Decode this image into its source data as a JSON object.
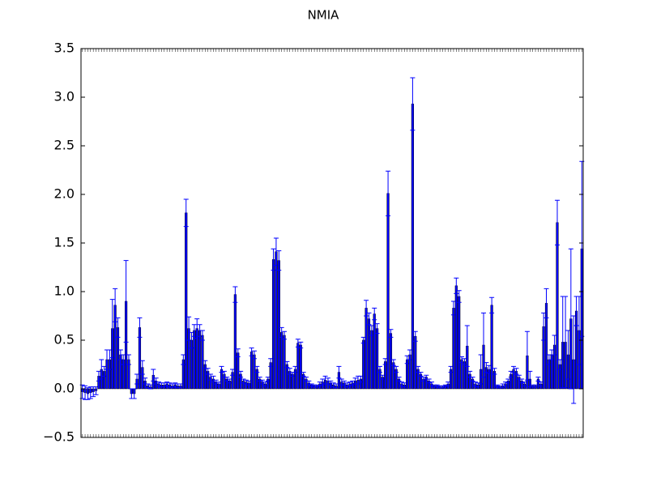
{
  "chart_data": {
    "type": "bar",
    "title": "NMIA",
    "categories": [
      null,
      null,
      null,
      null,
      null,
      null,
      null,
      null,
      null,
      null,
      null,
      null,
      null,
      null,
      null,
      null,
      null,
      null,
      null,
      null,
      null,
      null,
      null,
      null,
      null,
      null,
      null,
      null,
      null,
      null,
      null,
      null,
      null,
      null,
      null,
      null,
      null,
      null,
      null,
      null,
      null,
      null,
      null,
      null,
      null,
      null,
      null,
      null,
      null,
      null,
      null,
      null,
      null,
      null,
      null,
      null,
      null,
      null,
      null,
      null,
      null,
      null,
      null,
      null,
      null,
      null,
      null,
      null,
      null,
      null,
      null,
      null,
      null,
      null,
      null,
      null,
      null,
      null,
      null,
      null,
      null,
      null,
      null,
      null,
      null,
      null,
      null,
      null,
      null,
      null,
      null,
      null,
      null,
      null,
      null,
      null,
      null,
      null,
      null,
      null,
      null,
      null,
      null,
      null,
      null,
      null,
      null,
      null,
      null,
      null,
      null,
      null,
      null,
      null,
      null,
      null,
      null,
      null,
      null,
      null,
      null,
      null,
      null,
      null,
      null,
      null,
      null,
      null,
      null,
      null,
      null,
      null,
      null,
      null,
      null,
      null,
      null,
      null,
      null,
      null,
      null,
      null,
      null,
      null,
      null,
      null,
      null,
      null,
      null,
      null,
      null,
      null,
      null,
      null,
      null,
      null,
      null,
      null,
      null,
      null,
      null,
      null,
      null,
      null,
      null,
      null,
      null,
      null,
      null,
      null,
      null,
      null,
      null,
      null,
      null,
      null,
      null,
      null,
      null,
      null,
      null,
      null,
      null,
      null
    ],
    "series": [
      {
        "color": "#0000ff",
        "error_color": "#0000ff",
        "values": [
          -0.03,
          -0.04,
          -0.05,
          -0.04,
          -0.03,
          -0.02,
          0.13,
          0.2,
          0.18,
          0.3,
          0.3,
          0.62,
          0.86,
          0.63,
          0.35,
          0.3,
          0.9,
          0.3,
          -0.05,
          -0.05,
          0.1,
          0.63,
          0.22,
          0.08,
          0.03,
          0.02,
          0.14,
          0.08,
          0.05,
          0.04,
          0.04,
          0.05,
          0.04,
          0.03,
          0.04,
          0.03,
          0.03,
          0.3,
          1.81,
          0.62,
          0.5,
          0.6,
          0.62,
          0.6,
          0.55,
          0.25,
          0.18,
          0.12,
          0.1,
          0.07,
          0.05,
          0.2,
          0.15,
          0.1,
          0.08,
          0.17,
          0.97,
          0.37,
          0.15,
          0.08,
          0.07,
          0.06,
          0.38,
          0.35,
          0.2,
          0.1,
          0.07,
          0.05,
          0.1,
          0.27,
          1.33,
          1.41,
          1.32,
          0.58,
          0.55,
          0.25,
          0.18,
          0.15,
          0.2,
          0.47,
          0.45,
          0.15,
          0.1,
          0.06,
          0.04,
          0.03,
          0.03,
          0.05,
          0.07,
          0.09,
          0.08,
          0.06,
          0.04,
          0.03,
          0.17,
          0.07,
          0.06,
          0.04,
          0.05,
          0.06,
          0.08,
          0.09,
          0.1,
          0.5,
          0.83,
          0.72,
          0.6,
          0.77,
          0.62,
          0.2,
          0.12,
          0.28,
          2.01,
          0.57,
          0.27,
          0.2,
          0.1,
          0.05,
          0.04,
          0.3,
          0.35,
          2.93,
          0.54,
          0.2,
          0.15,
          0.1,
          0.12,
          0.08,
          0.05,
          0.03,
          0.03,
          0.02,
          0.02,
          0.03,
          0.05,
          0.2,
          0.83,
          1.06,
          0.95,
          0.3,
          0.28,
          0.44,
          0.15,
          0.1,
          0.05,
          0.04,
          0.2,
          0.45,
          0.22,
          0.2,
          0.86,
          0.18,
          0.03,
          0.02,
          0.03,
          0.05,
          0.08,
          0.15,
          0.2,
          0.18,
          0.12,
          0.08,
          0.05,
          0.34,
          0.1,
          0.03,
          0.03,
          0.1,
          0.05,
          0.64,
          0.88,
          0.3,
          0.35,
          0.45,
          1.71,
          0.25,
          0.48,
          0.48,
          0.35,
          0.72,
          0.3,
          0.8,
          0.6,
          1.44
        ],
        "errors": [
          0.07,
          0.07,
          0.06,
          0.06,
          0.05,
          0.04,
          0.05,
          0.1,
          0.05,
          0.1,
          0.1,
          0.3,
          0.17,
          0.1,
          0.05,
          0.05,
          0.42,
          0.05,
          0.05,
          0.05,
          0.05,
          0.1,
          0.07,
          0.03,
          0.02,
          0.02,
          0.06,
          0.03,
          0.02,
          0.02,
          0.02,
          0.02,
          0.02,
          0.02,
          0.02,
          0.02,
          0.02,
          0.05,
          0.14,
          0.12,
          0.08,
          0.06,
          0.1,
          0.06,
          0.05,
          0.04,
          0.03,
          0.03,
          0.03,
          0.02,
          0.02,
          0.03,
          0.03,
          0.02,
          0.02,
          0.03,
          0.08,
          0.04,
          0.03,
          0.02,
          0.02,
          0.02,
          0.04,
          0.04,
          0.03,
          0.02,
          0.02,
          0.02,
          0.02,
          0.04,
          0.11,
          0.14,
          0.1,
          0.05,
          0.04,
          0.03,
          0.03,
          0.02,
          0.03,
          0.04,
          0.03,
          0.02,
          0.02,
          0.02,
          0.01,
          0.01,
          0.01,
          0.02,
          0.03,
          0.04,
          0.03,
          0.02,
          0.02,
          0.02,
          0.06,
          0.03,
          0.02,
          0.02,
          0.02,
          0.02,
          0.03,
          0.04,
          0.03,
          0.03,
          0.08,
          0.06,
          0.05,
          0.06,
          0.05,
          0.03,
          0.02,
          0.03,
          0.23,
          0.04,
          0.03,
          0.03,
          0.02,
          0.02,
          0.02,
          0.04,
          0.05,
          0.27,
          0.05,
          0.03,
          0.02,
          0.02,
          0.02,
          0.02,
          0.02,
          0.01,
          0.01,
          0.01,
          0.01,
          0.01,
          0.02,
          0.03,
          0.07,
          0.08,
          0.06,
          0.03,
          0.03,
          0.21,
          0.03,
          0.02,
          0.02,
          0.02,
          0.15,
          0.33,
          0.05,
          0.04,
          0.08,
          0.03,
          0.01,
          0.01,
          0.02,
          0.02,
          0.02,
          0.03,
          0.03,
          0.03,
          0.02,
          0.02,
          0.02,
          0.25,
          0.08,
          0.01,
          0.01,
          0.02,
          0.02,
          0.14,
          0.15,
          0.05,
          0.05,
          0.1,
          0.23,
          0.05,
          0.47,
          0.47,
          0.25,
          0.72,
          0.45,
          0.15,
          0.35,
          0.9
        ]
      }
    ],
    "ylim": [
      -0.5,
      3.5
    ],
    "yticks": [
      {
        "value": -0.5,
        "label": "−0.5"
      },
      {
        "value": 0,
        "label": "0.0"
      },
      0.5,
      {
        "value": 1,
        "label": "1.0"
      },
      1.5,
      {
        "value": 2,
        "label": "2.0"
      },
      2.5,
      {
        "value": 3,
        "label": "3.0"
      },
      3.5
    ],
    "grid": false
  }
}
